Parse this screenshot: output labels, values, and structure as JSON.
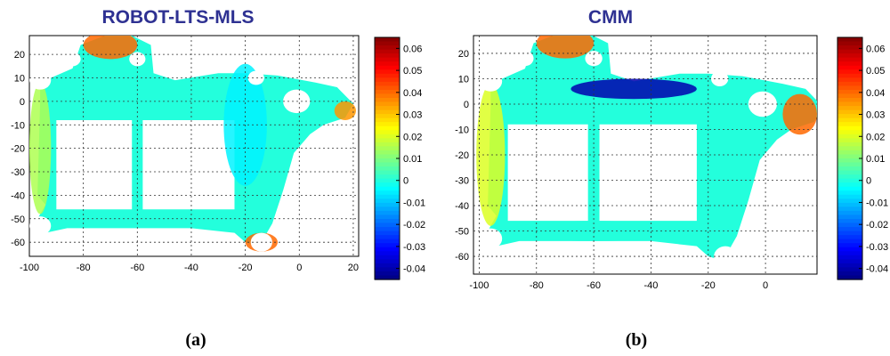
{
  "chart_data": [
    {
      "type": "heatmap",
      "title": "ROBOT-LTS-MLS",
      "panel_label": "(a)",
      "xlabel": "",
      "ylabel": "",
      "xlim": [
        -100,
        22
      ],
      "ylim": [
        -66,
        28
      ],
      "xticks": [
        -100,
        -80,
        -60,
        -40,
        -20,
        0,
        20
      ],
      "yticks": [
        20,
        10,
        0,
        -10,
        -20,
        -30,
        -40,
        -50,
        -60
      ],
      "grid": true,
      "colorbar": {
        "ticks": [
          0.06,
          0.05,
          0.04,
          0.03,
          0.02,
          0.01,
          0,
          -0.01,
          -0.02,
          -0.03,
          -0.04
        ],
        "range": [
          -0.045,
          0.065
        ]
      },
      "regions": [
        {
          "label": "top-left lobe",
          "value": 0.04
        },
        {
          "label": "right tip",
          "value": 0.035
        },
        {
          "label": "bottom-right lobe",
          "value": 0.04
        },
        {
          "label": "frame body",
          "value": -0.005
        },
        {
          "label": "left-side band",
          "value": 0.015
        }
      ]
    },
    {
      "type": "heatmap",
      "title": "CMM",
      "panel_label": "(b)",
      "xlabel": "",
      "ylabel": "",
      "xlim": [
        -102,
        18
      ],
      "ylim": [
        -67,
        27
      ],
      "xticks": [
        -100,
        -80,
        -60,
        -40,
        -20,
        0
      ],
      "yticks": [
        20,
        10,
        0,
        -10,
        -20,
        -30,
        -40,
        -50,
        -60
      ],
      "grid": true,
      "colorbar": {
        "ticks": [
          0.06,
          0.05,
          0.04,
          0.03,
          0.02,
          0.01,
          0,
          -0.01,
          -0.02,
          -0.03,
          -0.04
        ],
        "range": [
          -0.045,
          0.065
        ]
      },
      "regions": [
        {
          "label": "top-left lobe",
          "value": 0.04
        },
        {
          "label": "top bridge",
          "value": -0.04
        },
        {
          "label": "right tip",
          "value": 0.04
        },
        {
          "label": "frame body",
          "value": 0.0
        },
        {
          "label": "left side",
          "value": 0.02
        }
      ]
    }
  ]
}
